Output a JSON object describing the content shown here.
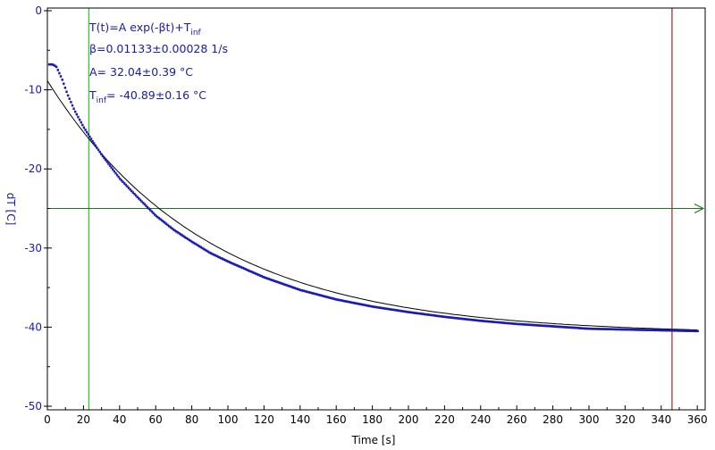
{
  "colors": {
    "data": "#1a1ab4",
    "fit": "#000000",
    "axis_text": "#1a1aa6",
    "green_cursor": "#22cc22",
    "dark_green_line": "#1a7a1a",
    "red_cursor": "#aa2222"
  },
  "annotations": {
    "model_prefix": "T(t)=A exp(-βt)+T",
    "model_sub": "inf",
    "beta": "β=0.01133±0.00028 1/s",
    "amplitude": "A= 32.04±0.39 °C",
    "tinf_prefix": "T",
    "tinf_sub": "inf",
    "tinf_value": "= -40.89±0.16 °C"
  },
  "chart_data": {
    "type": "scatter",
    "xlabel": "Time [s]",
    "ylabel": "dT [C]",
    "xlim": [
      0,
      362
    ],
    "ylim": [
      -50,
      0
    ],
    "xticks": [
      0,
      20,
      40,
      60,
      80,
      100,
      120,
      140,
      160,
      180,
      200,
      220,
      240,
      260,
      280,
      300,
      320,
      340,
      360
    ],
    "yticks": [
      0,
      -10,
      -20,
      -30,
      -40,
      -50
    ],
    "fit": {
      "A": 32.04,
      "beta": 0.01133,
      "T_inf": -40.89
    },
    "series": [
      {
        "x": [
          1,
          3,
          5,
          8,
          11,
          15,
          20,
          25,
          30,
          40,
          50,
          60,
          70,
          80,
          90,
          100,
          120,
          140,
          160,
          180,
          200,
          220,
          240,
          260,
          280,
          300,
          320,
          340,
          360
        ],
        "y": [
          -6.8,
          -6.8,
          -7.1,
          -8.6,
          -10.5,
          -12.6,
          -14.7,
          -16.5,
          -18.2,
          -21.2,
          -23.6,
          -25.9,
          -27.7,
          -29.2,
          -30.6,
          -31.7,
          -33.7,
          -35.3,
          -36.5,
          -37.4,
          -38.1,
          -38.7,
          -39.2,
          -39.6,
          -39.9,
          -40.2,
          -40.3,
          -40.4,
          -40.5
        ]
      }
    ],
    "vertical_cursors": [
      23,
      346
    ],
    "horizontal_line": -25
  }
}
